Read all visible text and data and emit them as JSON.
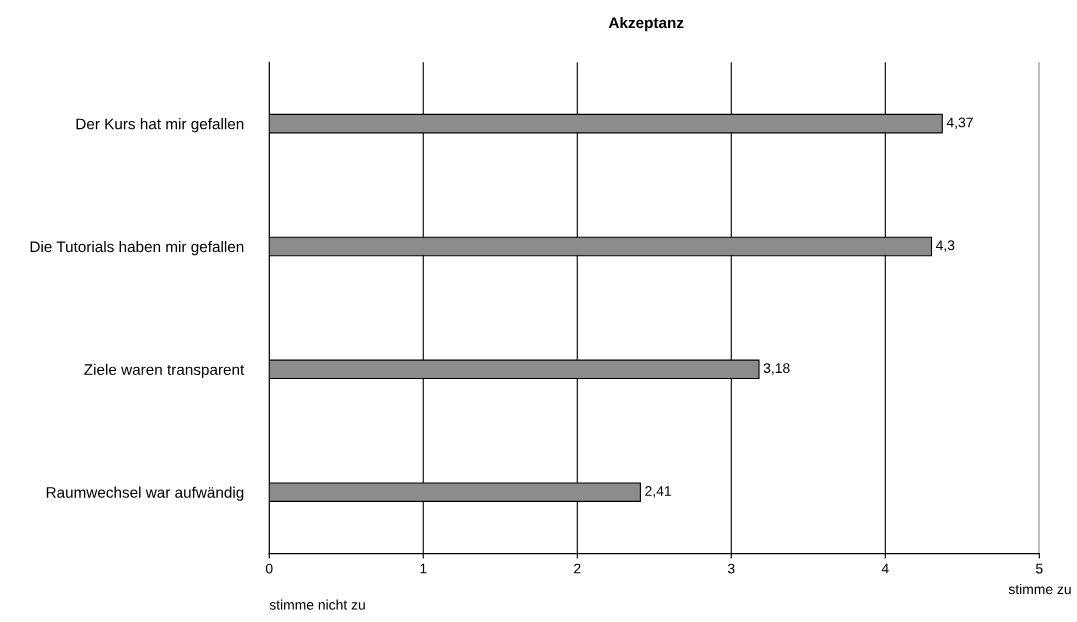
{
  "chart_data": {
    "type": "bar",
    "orientation": "horizontal",
    "title": "Akzeptanz",
    "categories": [
      "Der Kurs hat mir gefallen",
      "Die Tutorials haben mir gefallen",
      "Ziele waren transparent",
      "Raumwechsel war aufwändig"
    ],
    "values": [
      4.37,
      4.3,
      3.18,
      2.41
    ],
    "value_labels": [
      "4,37",
      "4,3",
      "3,18",
      "2,41"
    ],
    "color": "#8c8c8c",
    "xlim": [
      0,
      5
    ],
    "xticks": [
      0,
      1,
      2,
      3,
      4,
      5
    ],
    "grid": "x",
    "annotations": [
      "stimme nicht zu",
      "stimme zu"
    ]
  }
}
